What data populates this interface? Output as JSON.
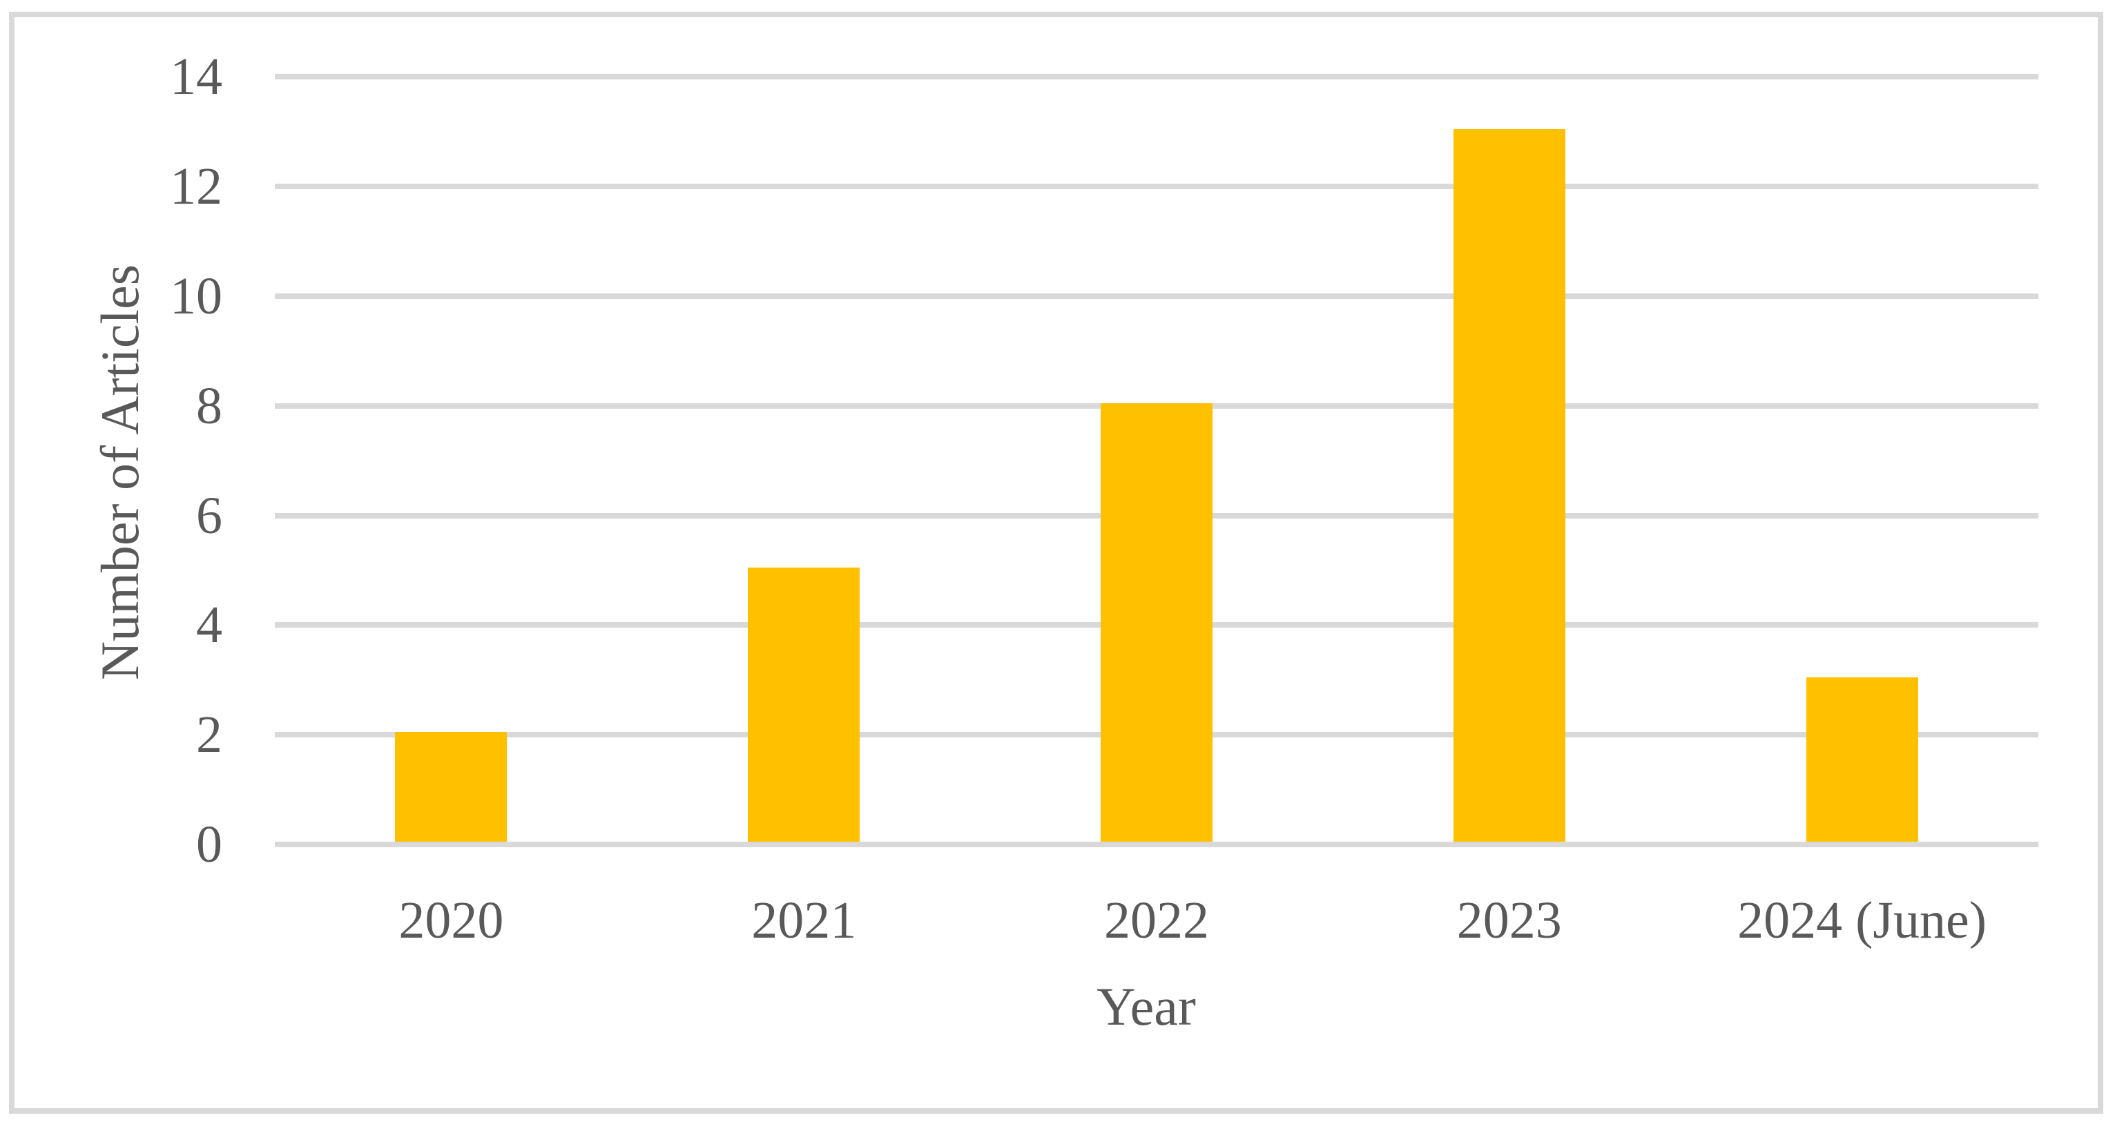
{
  "chart_data": {
    "type": "bar",
    "title": "",
    "categories": [
      "2020",
      "2021",
      "2022",
      "2023",
      "2024 (June)"
    ],
    "values": [
      2,
      5,
      8,
      13,
      3
    ],
    "xlabel": "Year",
    "ylabel": "Number of Articles",
    "ylim": [
      0,
      14
    ],
    "yticks": [
      0,
      2,
      4,
      6,
      8,
      10,
      12,
      14
    ],
    "grid": true,
    "legend": false,
    "series_name": "Number of Articles",
    "colors": {
      "bar": "#FFC000",
      "gridline": "#D9D9D9",
      "frame_border": "#D9D9D9",
      "text": "#595959",
      "background": "#FFFFFF"
    }
  }
}
